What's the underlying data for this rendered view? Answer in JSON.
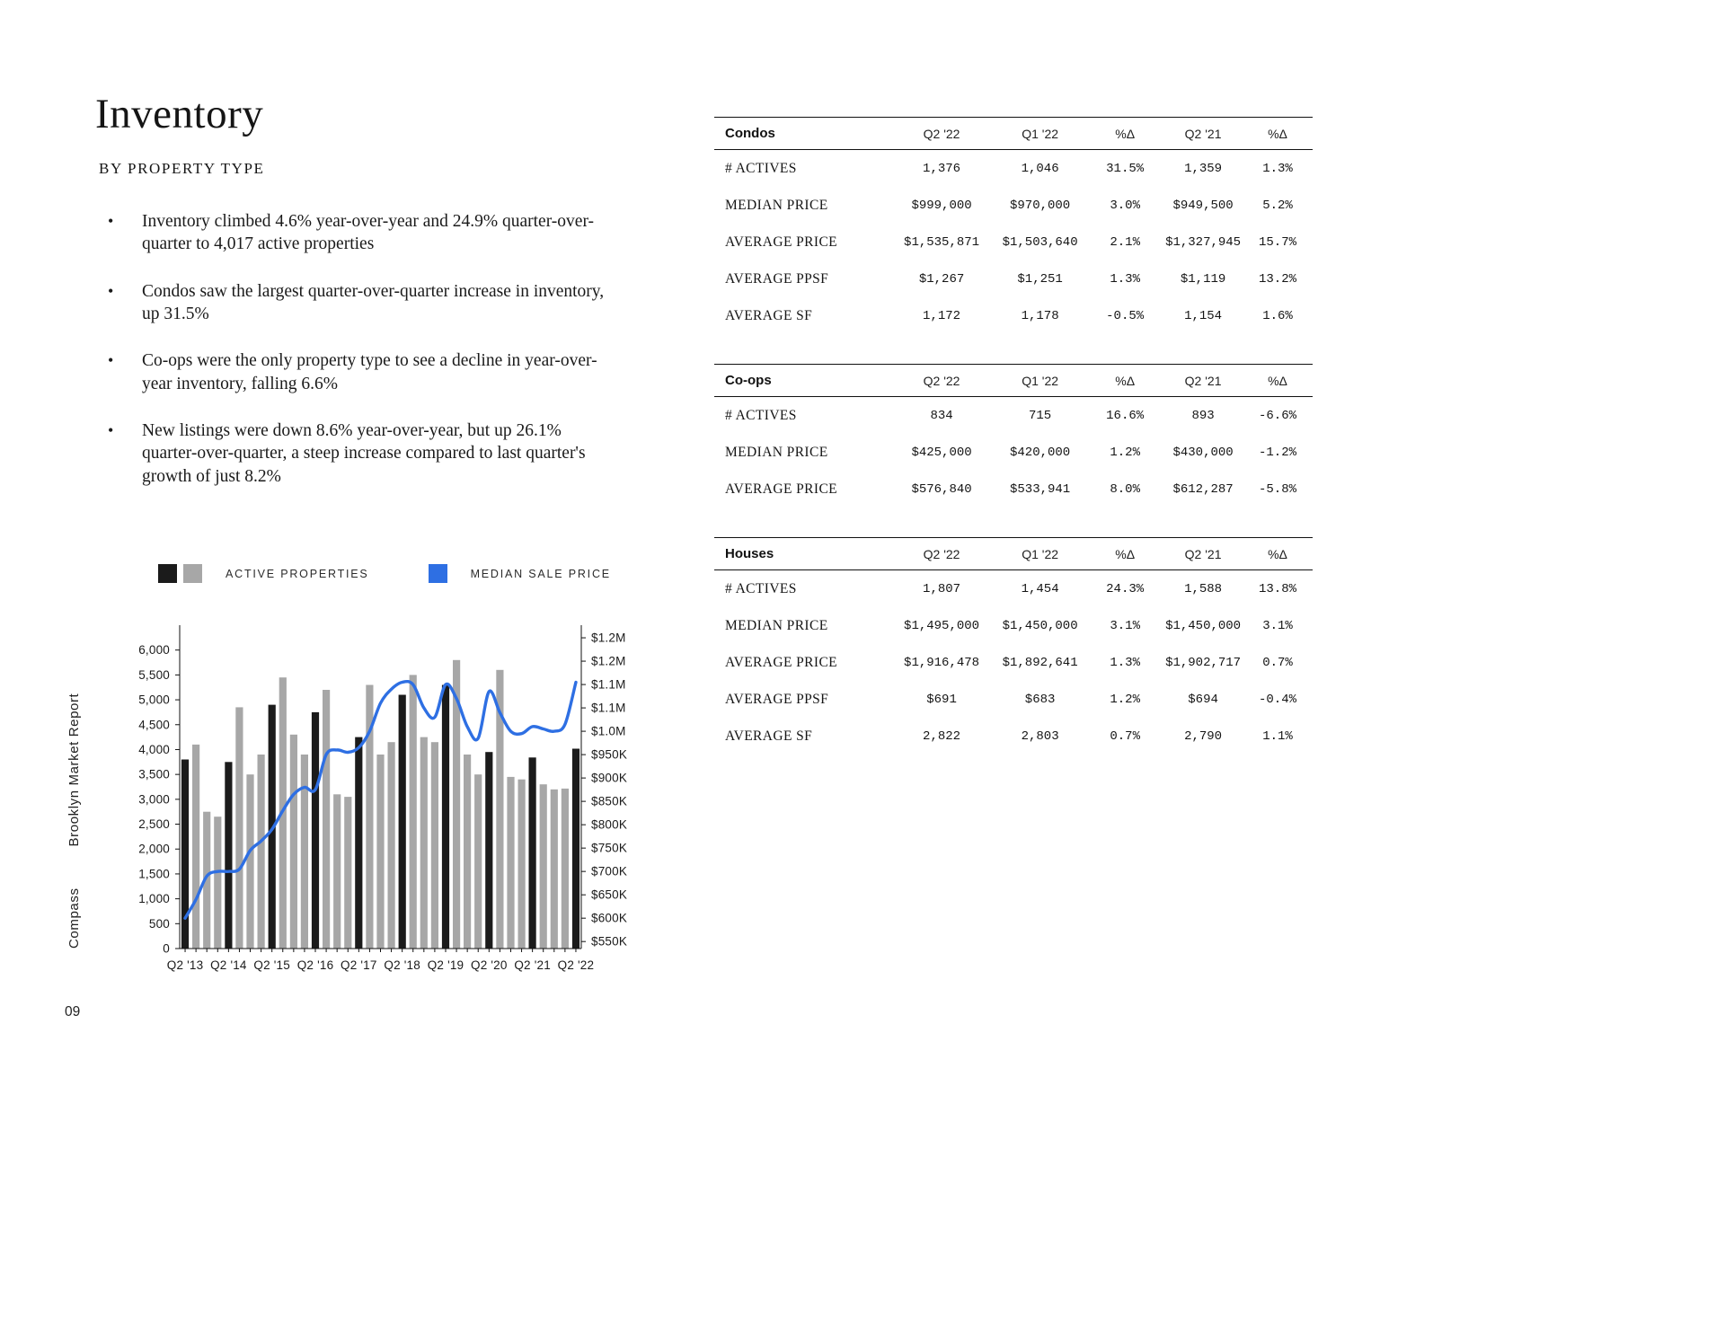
{
  "page": {
    "title": "Inventory",
    "subtitle": "BY PROPERTY TYPE",
    "page_number": "09",
    "footer_brand": "Compass",
    "footer_report": "Brooklyn Market Report"
  },
  "bullets": [
    "Inventory climbed 4.6% year-over-year and 24.9% quarter-over-quarter to 4,017 active properties",
    "Condos saw the largest quarter-over-quarter increase in inventory, up 31.5%",
    "Co-ops were the only property type to see a decline in year-over-year inventory, falling 6.6%",
    "New listings were down 8.6% year-over-year, but up 26.1% quarter-over-quarter, a steep increase compared to last quarter's growth of just 8.2%"
  ],
  "legend": {
    "active_properties": "ACTIVE PROPERTIES",
    "median_sale_price": "MEDIAN SALE PRICE"
  },
  "colors": {
    "bar_black": "#1b1b1b",
    "bar_gray": "#a7a7a7",
    "line_blue": "#2e6fe3"
  },
  "chart_data": {
    "type": "bar",
    "title": "Active properties and median sale price by quarter",
    "x": [
      "Q2 '13",
      "Q3 '13",
      "Q4 '13",
      "Q1 '14",
      "Q2 '14",
      "Q3 '14",
      "Q4 '14",
      "Q1 '15",
      "Q2 '15",
      "Q3 '15",
      "Q4 '15",
      "Q1 '16",
      "Q2 '16",
      "Q3 '16",
      "Q4 '16",
      "Q1 '17",
      "Q2 '17",
      "Q3 '17",
      "Q4 '17",
      "Q1 '18",
      "Q2 '18",
      "Q3 '18",
      "Q4 '18",
      "Q1 '19",
      "Q2 '19",
      "Q3 '19",
      "Q4 '19",
      "Q1 '20",
      "Q2 '20",
      "Q3 '20",
      "Q4 '20",
      "Q1 '21",
      "Q2 '21",
      "Q3 '21",
      "Q4 '21",
      "Q1 '22",
      "Q2 '22"
    ],
    "x_labeled_ticks": [
      "Q2 '13",
      "Q2 '14",
      "Q2 '15",
      "Q2 '16",
      "Q2 '17",
      "Q2 '18",
      "Q2 '19",
      "Q2 '20",
      "Q2 '21",
      "Q2 '22"
    ],
    "series": [
      {
        "name": "ACTIVE PROPERTIES",
        "type": "bar",
        "axis": "left",
        "values": [
          3800,
          4100,
          2750,
          2650,
          3750,
          4850,
          3500,
          3900,
          4900,
          5450,
          4300,
          3900,
          4750,
          5200,
          3100,
          3050,
          4250,
          5300,
          3900,
          4150,
          5100,
          5500,
          4250,
          4150,
          5300,
          5800,
          3900,
          3500,
          3950,
          5600,
          3450,
          3400,
          3840,
          3300,
          3200,
          3215,
          4017
        ]
      },
      {
        "name": "MEDIAN SALE PRICE",
        "type": "line",
        "axis": "right",
        "unit": "$K",
        "values": [
          600,
          640,
          690,
          700,
          700,
          705,
          745,
          765,
          790,
          830,
          865,
          880,
          875,
          950,
          960,
          955,
          965,
          1000,
          1060,
          1090,
          1105,
          1100,
          1050,
          1030,
          1100,
          1070,
          1010,
          985,
          1085,
          1040,
          1000,
          995,
          1010,
          1005,
          1000,
          1015,
          1105
        ]
      }
    ],
    "left_axis": {
      "min": 0,
      "max": 6500,
      "ticks": [
        {
          "v": 0,
          "label": "0"
        },
        {
          "v": 500,
          "label": "500"
        },
        {
          "v": 1000,
          "label": "1,000"
        },
        {
          "v": 1500,
          "label": "1,500"
        },
        {
          "v": 2000,
          "label": "2,000"
        },
        {
          "v": 2500,
          "label": "2,500"
        },
        {
          "v": 3000,
          "label": "3,000"
        },
        {
          "v": 3500,
          "label": "3,500"
        },
        {
          "v": 4000,
          "label": "4,000"
        },
        {
          "v": 4500,
          "label": "4,500"
        },
        {
          "v": 5000,
          "label": "5,000"
        },
        {
          "v": 5500,
          "label": "5,500"
        },
        {
          "v": 6000,
          "label": "6,000"
        }
      ]
    },
    "right_axis": {
      "min": 535,
      "max": 1227,
      "ticks": [
        {
          "v": 550,
          "label": "$550K"
        },
        {
          "v": 600,
          "label": "$600K"
        },
        {
          "v": 650,
          "label": "$650K"
        },
        {
          "v": 700,
          "label": "$700K"
        },
        {
          "v": 750,
          "label": "$750K"
        },
        {
          "v": 800,
          "label": "$800K"
        },
        {
          "v": 850,
          "label": "$850K"
        },
        {
          "v": 900,
          "label": "$900K"
        },
        {
          "v": 950,
          "label": "$950K"
        },
        {
          "v": 1000,
          "label": "$1.0M"
        },
        {
          "v": 1050,
          "label": "$1.1M"
        },
        {
          "v": 1100,
          "label": "$1.1M"
        },
        {
          "v": 1150,
          "label": "$1.2M"
        },
        {
          "v": 1200,
          "label": "$1.2M"
        }
      ]
    },
    "grid": false,
    "legend_position": "top"
  },
  "tables": [
    {
      "name": "Condos",
      "columns": [
        "Q2 '22",
        "Q1 '22",
        "%Δ",
        "Q2 '21",
        "%Δ"
      ],
      "rows": [
        {
          "label": "# ACTIVES",
          "values": [
            "1,376",
            "1,046",
            "31.5%",
            "1,359",
            "1.3%"
          ]
        },
        {
          "label": "MEDIAN PRICE",
          "values": [
            "$999,000",
            "$970,000",
            "3.0%",
            "$949,500",
            "5.2%"
          ]
        },
        {
          "label": "AVERAGE PRICE",
          "values": [
            "$1,535,871",
            "$1,503,640",
            "2.1%",
            "$1,327,945",
            "15.7%"
          ]
        },
        {
          "label": "AVERAGE PPSF",
          "values": [
            "$1,267",
            "$1,251",
            "1.3%",
            "$1,119",
            "13.2%"
          ]
        },
        {
          "label": "AVERAGE SF",
          "values": [
            "1,172",
            "1,178",
            "-0.5%",
            "1,154",
            "1.6%"
          ]
        }
      ]
    },
    {
      "name": "Co-ops",
      "columns": [
        "Q2 '22",
        "Q1 '22",
        "%Δ",
        "Q2 '21",
        "%Δ"
      ],
      "rows": [
        {
          "label": "# ACTIVES",
          "values": [
            "834",
            "715",
            "16.6%",
            "893",
            "-6.6%"
          ]
        },
        {
          "label": "MEDIAN PRICE",
          "values": [
            "$425,000",
            "$420,000",
            "1.2%",
            "$430,000",
            "-1.2%"
          ]
        },
        {
          "label": "AVERAGE PRICE",
          "values": [
            "$576,840",
            "$533,941",
            "8.0%",
            "$612,287",
            "-5.8%"
          ]
        }
      ]
    },
    {
      "name": "Houses",
      "columns": [
        "Q2 '22",
        "Q1 '22",
        "%Δ",
        "Q2 '21",
        "%Δ"
      ],
      "rows": [
        {
          "label": "# ACTIVES",
          "values": [
            "1,807",
            "1,454",
            "24.3%",
            "1,588",
            "13.8%"
          ]
        },
        {
          "label": "MEDIAN PRICE",
          "values": [
            "$1,495,000",
            "$1,450,000",
            "3.1%",
            "$1,450,000",
            "3.1%"
          ]
        },
        {
          "label": "AVERAGE PRICE",
          "values": [
            "$1,916,478",
            "$1,892,641",
            "1.3%",
            "$1,902,717",
            "0.7%"
          ]
        },
        {
          "label": "AVERAGE PPSF",
          "values": [
            "$691",
            "$683",
            "1.2%",
            "$694",
            "-0.4%"
          ]
        },
        {
          "label": "AVERAGE SF",
          "values": [
            "2,822",
            "2,803",
            "0.7%",
            "2,790",
            "1.1%"
          ]
        }
      ]
    }
  ]
}
